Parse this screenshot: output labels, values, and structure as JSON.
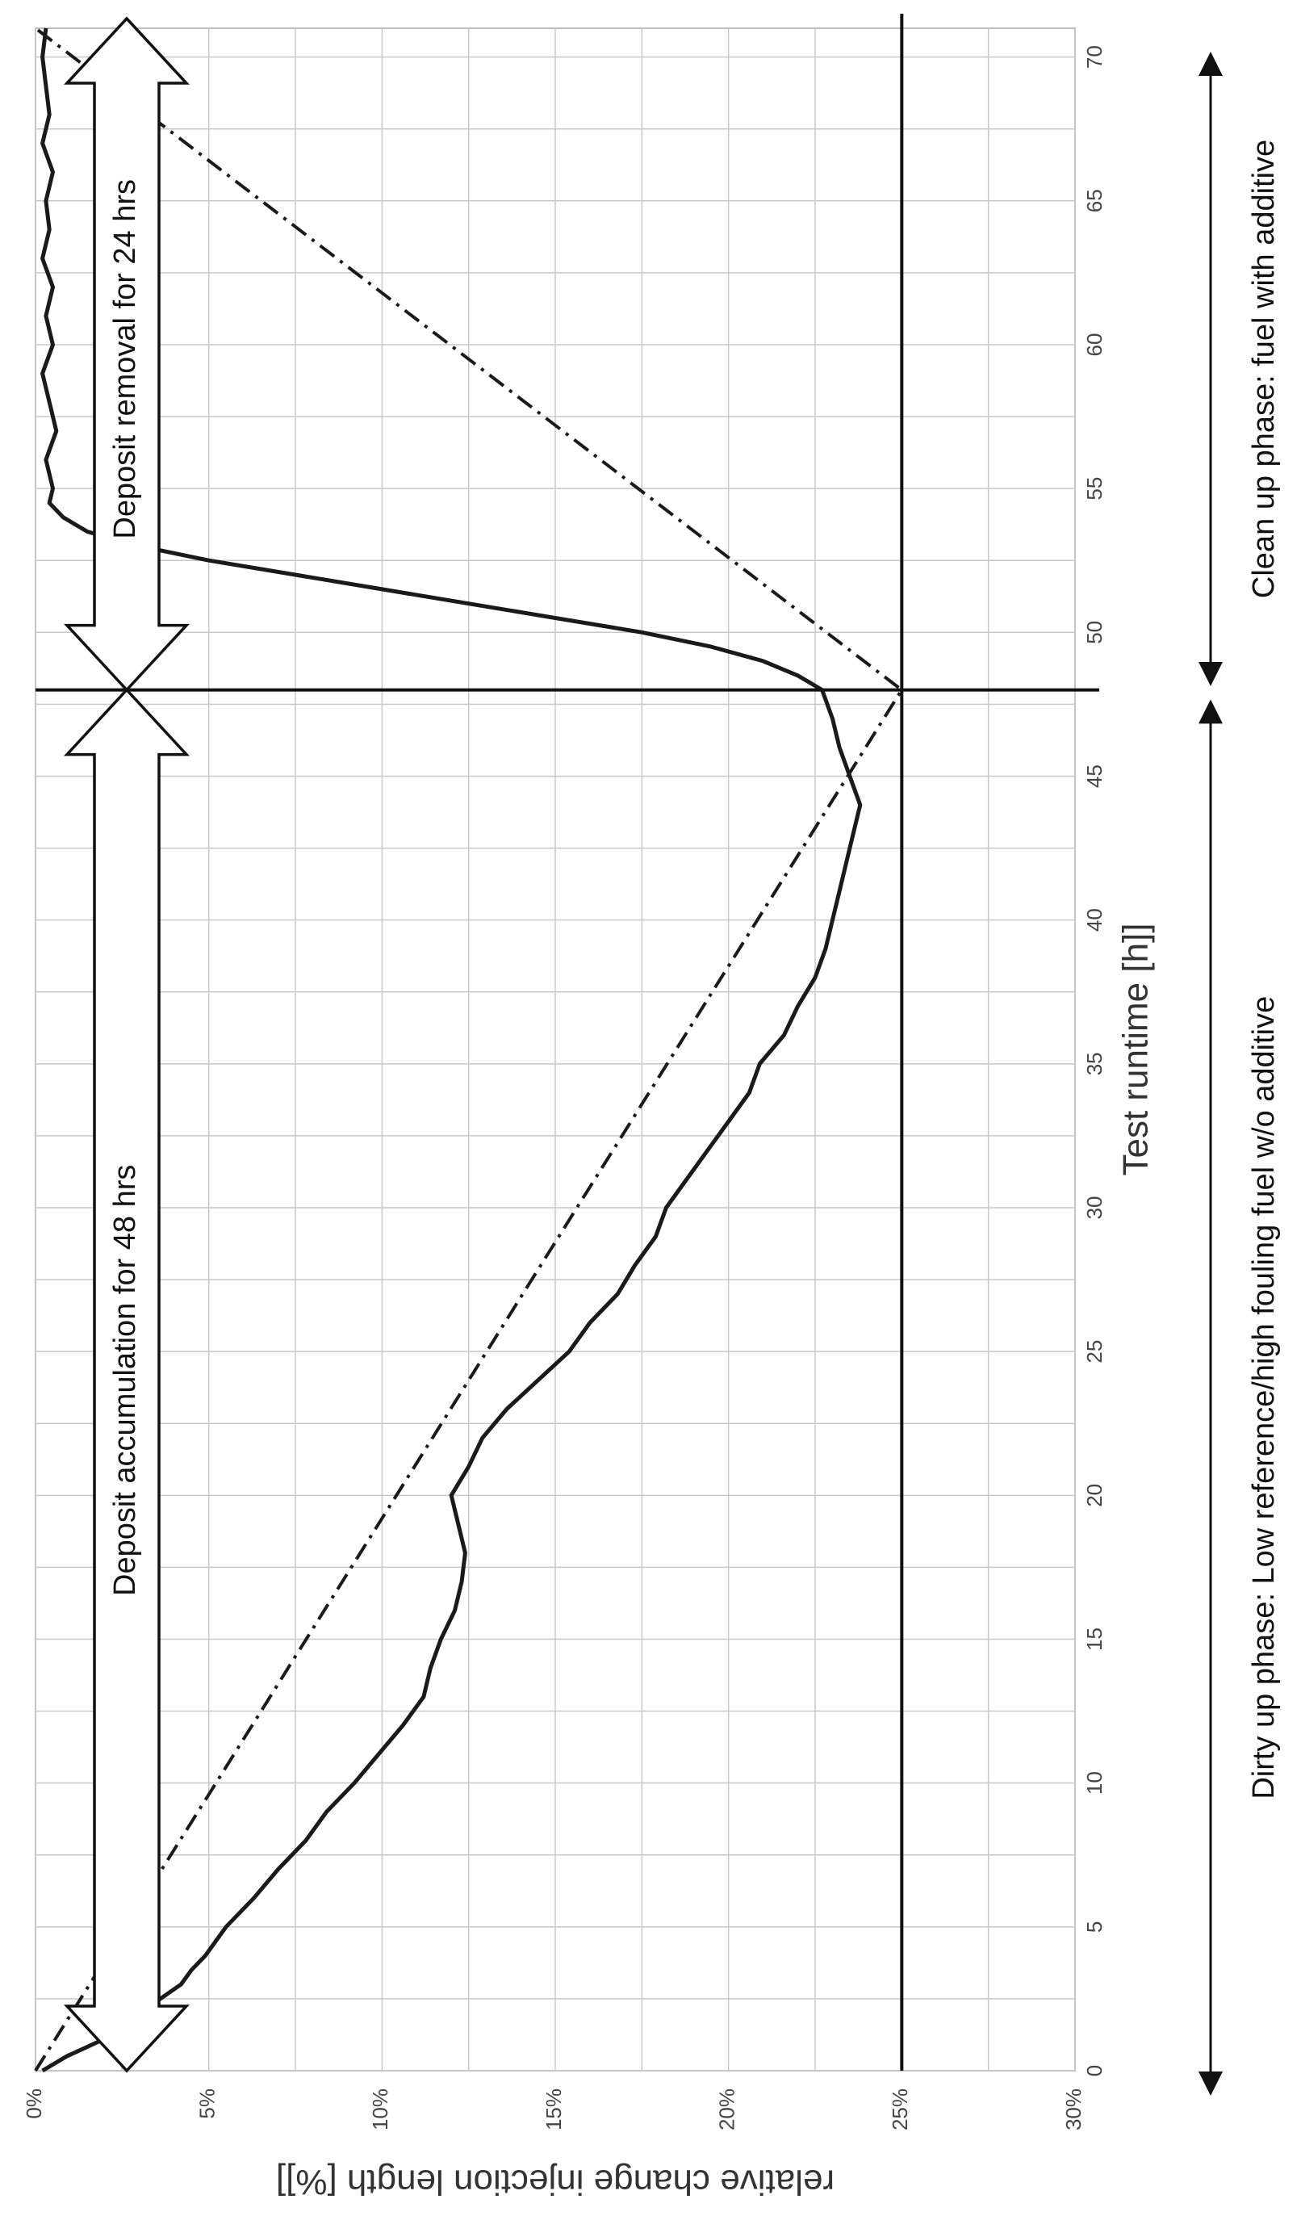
{
  "chart_data": {
    "type": "line",
    "title": "",
    "xlabel": "Test runtime [h]]",
    "ylabel": "relative change injection length [%]]",
    "xlim": [
      0,
      71
    ],
    "ylim": [
      0,
      30
    ],
    "x_ticks": [
      "0",
      "5",
      "10",
      "15",
      "20",
      "25",
      "30",
      "35",
      "40",
      "45",
      "50",
      "55",
      "60",
      "65",
      "70"
    ],
    "y_ticks": [
      "0%",
      "5%",
      "10%",
      "15%",
      "20%",
      "25%",
      "30%"
    ],
    "grid": true,
    "series": [
      {
        "style": "solid",
        "x": [
          0,
          0.5,
          1,
          1.5,
          2,
          2.5,
          3,
          3.5,
          4,
          5,
          6,
          7,
          8,
          9,
          10,
          11,
          12,
          13,
          14,
          15,
          16,
          17,
          18,
          19,
          20,
          21,
          22,
          23,
          24,
          25,
          26,
          27,
          28,
          29,
          30,
          31,
          32,
          33,
          34,
          35,
          36,
          37,
          38,
          39,
          40,
          41,
          42,
          43,
          44,
          45,
          46,
          47,
          48,
          48.5,
          49,
          49.5,
          50,
          50.5,
          51,
          51.5,
          52,
          52.5,
          53,
          53.5,
          54,
          54.5,
          55,
          56,
          57,
          58,
          59,
          60,
          61,
          62,
          63,
          64,
          65,
          66,
          67,
          68,
          69,
          70,
          71
        ],
        "y": [
          0.2,
          0.9,
          1.8,
          2.6,
          3.0,
          3.6,
          4.2,
          4.5,
          4.9,
          5.5,
          6.3,
          7.0,
          7.8,
          8.4,
          9.2,
          9.9,
          10.6,
          11.2,
          11.4,
          11.7,
          12.1,
          12.3,
          12.4,
          12.2,
          12.0,
          12.5,
          12.9,
          13.6,
          14.5,
          15.4,
          16.0,
          16.8,
          17.3,
          17.9,
          18.2,
          18.8,
          19.4,
          20.0,
          20.6,
          20.9,
          21.6,
          22.0,
          22.5,
          22.8,
          23.0,
          23.2,
          23.4,
          23.6,
          23.8,
          23.5,
          23.2,
          23.0,
          22.7,
          22.0,
          21.0,
          19.5,
          17.5,
          15.0,
          12.5,
          10.0,
          7.5,
          5.0,
          3.0,
          1.5,
          0.8,
          0.4,
          0.5,
          0.3,
          0.6,
          0.4,
          0.2,
          0.5,
          0.3,
          0.5,
          0.2,
          0.4,
          0.3,
          0.5,
          0.2,
          0.4,
          0.3,
          0.2,
          0.3
        ]
      },
      {
        "style": "dash-dot",
        "x": [
          0,
          48,
          71
        ],
        "y": [
          0,
          25,
          0
        ]
      }
    ],
    "reference_lines": {
      "horizontal_y": 25,
      "vertical_x": 48
    },
    "annotations": {
      "accumulation": "Deposit accumulation for 48 hrs",
      "removal": "Deposit removal for 24 hrs",
      "dirty_phase": "Dirty up phase: Low reference/high fouling fuel w/o additive",
      "clean_phase": "Clean up phase: fuel with additive"
    }
  }
}
